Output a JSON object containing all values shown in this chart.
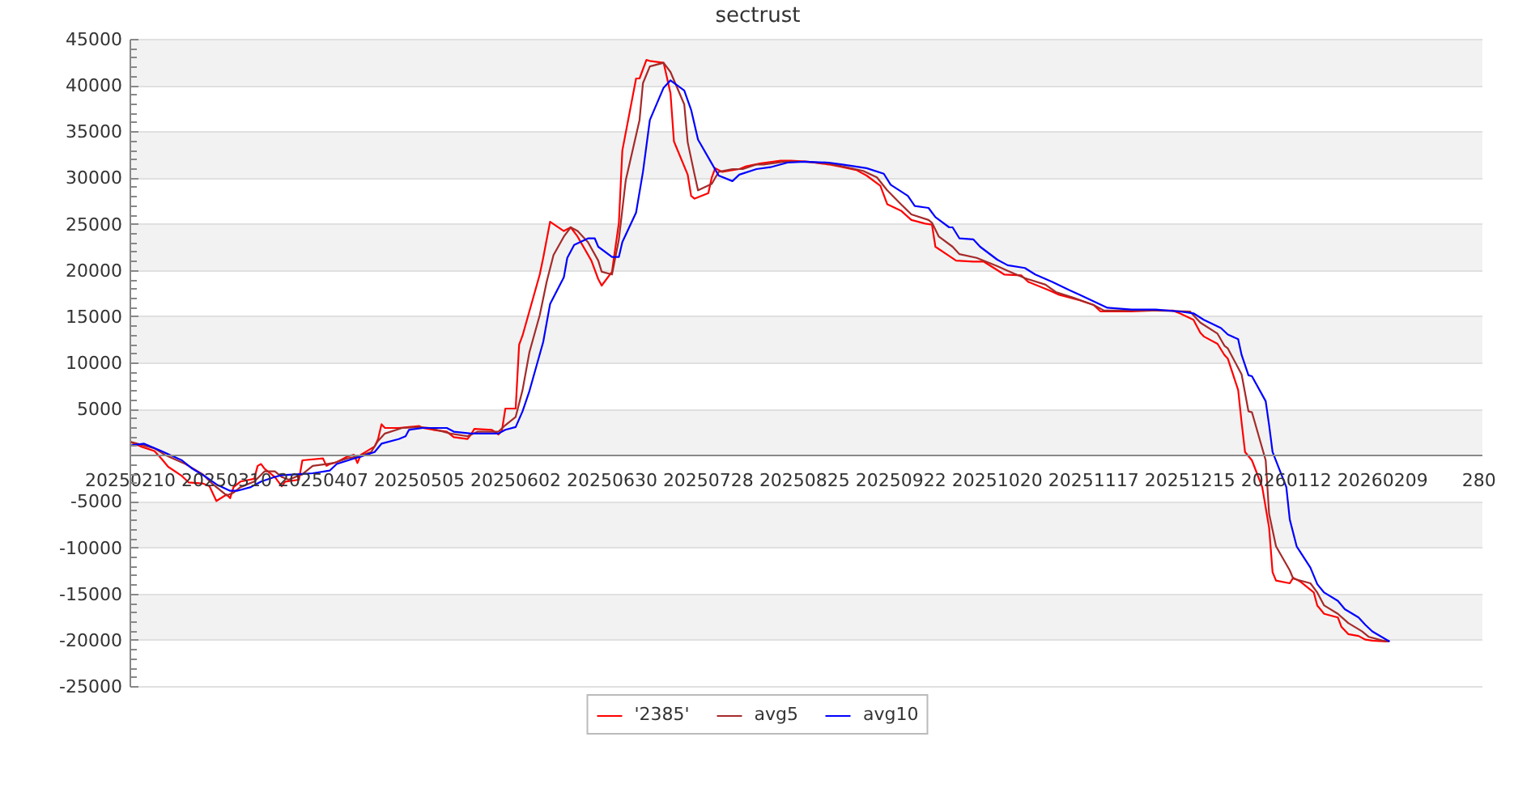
{
  "chart_data": {
    "type": "line",
    "title": "sectrust",
    "xlim": [
      "2025-02-10",
      "2026-03-10"
    ],
    "xticks": [
      {
        "value": "2025-02-10",
        "label": "20250210"
      },
      {
        "value": "2025-03-10",
        "label": "20250310"
      },
      {
        "value": "2025-04-07",
        "label": "20250407"
      },
      {
        "value": "2025-05-05",
        "label": "20250505"
      },
      {
        "value": "2025-06-02",
        "label": "20250602"
      },
      {
        "value": "2025-06-30",
        "label": "20250630"
      },
      {
        "value": "2025-07-28",
        "label": "20250728"
      },
      {
        "value": "2025-08-25",
        "label": "20250825"
      },
      {
        "value": "2025-09-22",
        "label": "20250922"
      },
      {
        "value": "2025-10-20",
        "label": "20251020"
      },
      {
        "value": "2025-11-17",
        "label": "20251117"
      },
      {
        "value": "2025-12-15",
        "label": "20251215"
      },
      {
        "value": "2026-01-12",
        "label": "20260112"
      },
      {
        "value": "2026-02-09",
        "label": "20260209"
      },
      {
        "value": "2026-03-09",
        "label": "280"
      }
    ],
    "ylim": [
      -25000,
      45000
    ],
    "yticks": [
      -25000,
      -20000,
      -15000,
      -10000,
      -5000,
      {
        "value": 0,
        "label": null
      },
      5000,
      10000,
      15000,
      20000,
      25000,
      30000,
      35000,
      40000,
      45000
    ],
    "grid": "y",
    "legend": "bottom",
    "bands": [
      {
        "axis": "y",
        "from": -20000,
        "to": -15000,
        "color": "#f2f2f2"
      },
      {
        "axis": "y",
        "from": -10000,
        "to": -5000,
        "color": "#f2f2f2"
      },
      {
        "axis": "y",
        "from": 0,
        "to": 5000,
        "color": "#f2f2f2"
      },
      {
        "axis": "y",
        "from": 10000,
        "to": 15000,
        "color": "#f2f2f2"
      },
      {
        "axis": "y",
        "from": 20000,
        "to": 25000,
        "color": "#f2f2f2"
      },
      {
        "axis": "y",
        "from": 30000,
        "to": 35000,
        "color": "#f2f2f2"
      },
      {
        "axis": "y",
        "from": 40000,
        "to": 45000,
        "color": "#f2f2f2"
      }
    ],
    "series": [
      {
        "name": "'2385'",
        "color": "#ff0000",
        "x": [
          "2025-02-10",
          "2025-02-13",
          "2025-02-17",
          "2025-02-19",
          "2025-02-21",
          "2025-02-25",
          "2025-02-27",
          "2025-03-03",
          "2025-03-05",
          "2025-03-07",
          "2025-03-10",
          "2025-03-11",
          "2025-03-12",
          "2025-03-14",
          "2025-03-18",
          "2025-03-19",
          "2025-03-20",
          "2025-03-21",
          "2025-03-24",
          "2025-03-25",
          "2025-03-26",
          "2025-03-27",
          "2025-03-31",
          "2025-04-01",
          "2025-04-07",
          "2025-04-08",
          "2025-04-09",
          "2025-04-11",
          "2025-04-14",
          "2025-04-16",
          "2025-04-17",
          "2025-04-18",
          "2025-04-22",
          "2025-04-23",
          "2025-04-24",
          "2025-04-25",
          "2025-04-29",
          "2025-05-05",
          "2025-05-06",
          "2025-05-09",
          "2025-05-13",
          "2025-05-15",
          "2025-05-19",
          "2025-05-20",
          "2025-05-21",
          "2025-05-26",
          "2025-05-28",
          "2025-05-29",
          "2025-05-30",
          "2025-06-02",
          "2025-06-03",
          "2025-06-04",
          "2025-06-09",
          "2025-06-10",
          "2025-06-12",
          "2025-06-16",
          "2025-06-18",
          "2025-06-20",
          "2025-06-24",
          "2025-06-26",
          "2025-06-27",
          "2025-06-30",
          "2025-07-02",
          "2025-07-03",
          "2025-07-07",
          "2025-07-08",
          "2025-07-10",
          "2025-07-11",
          "2025-07-15",
          "2025-07-17",
          "2025-07-18",
          "2025-07-22",
          "2025-07-23",
          "2025-07-24",
          "2025-07-28",
          "2025-07-29",
          "2025-07-30",
          "2025-08-01",
          "2025-08-06",
          "2025-08-08",
          "2025-08-12",
          "2025-08-18",
          "2025-08-21",
          "2025-08-26",
          "2025-09-01",
          "2025-09-04",
          "2025-09-09",
          "2025-09-12",
          "2025-09-16",
          "2025-09-18",
          "2025-09-22",
          "2025-09-25",
          "2025-09-29",
          "2025-10-01",
          "2025-10-02",
          "2025-10-06",
          "2025-10-08",
          "2025-10-13",
          "2025-10-16",
          "2025-10-22",
          "2025-10-27",
          "2025-10-29",
          "2025-11-04",
          "2025-11-07",
          "2025-11-13",
          "2025-11-17",
          "2025-11-19",
          "2025-11-28",
          "2025-12-04",
          "2025-12-10",
          "2025-12-12",
          "2025-12-16",
          "2025-12-18",
          "2025-12-19",
          "2025-12-23",
          "2025-12-25",
          "2025-12-26",
          "2025-12-29",
          "2025-12-30",
          "2025-12-31",
          "2026-01-02",
          "2026-01-05",
          "2026-01-07",
          "2026-01-08",
          "2026-01-09",
          "2026-01-13",
          "2026-01-14",
          "2026-01-16",
          "2026-01-20",
          "2026-01-21",
          "2026-01-23",
          "2026-01-27",
          "2026-01-28",
          "2026-01-30",
          "2026-02-02",
          "2026-02-04",
          "2026-02-06",
          "2026-02-10",
          "2026-02-11"
        ],
        "values": [
          1500,
          1000,
          500,
          -300,
          -1200,
          -2200,
          -2900,
          -3000,
          -3300,
          -4900,
          -4200,
          -4600,
          -3400,
          -2800,
          -2500,
          -1100,
          -900,
          -1400,
          -2300,
          -2800,
          -3300,
          -2800,
          -2600,
          -500,
          -300,
          -1100,
          -900,
          -700,
          -100,
          100,
          -800,
          100,
          1000,
          1800,
          3400,
          3000,
          3000,
          3200,
          3000,
          2800,
          2600,
          2000,
          1800,
          2300,
          2900,
          2800,
          2300,
          2700,
          5100,
          5100,
          12000,
          13000,
          19600,
          21400,
          25300,
          24300,
          24700,
          23700,
          21100,
          19100,
          18400,
          19900,
          25200,
          33000,
          40800,
          40800,
          42800,
          42700,
          42500,
          39200,
          34000,
          30400,
          28100,
          27800,
          28400,
          30100,
          31100,
          30700,
          31000,
          31300,
          31600,
          31900,
          31900,
          31800,
          31500,
          31300,
          30900,
          30300,
          29200,
          27200,
          26500,
          25500,
          25100,
          25000,
          22600,
          21600,
          21100,
          21000,
          21000,
          19600,
          19500,
          18800,
          17900,
          17400,
          16800,
          16300,
          15600,
          15600,
          15700,
          15700,
          15400,
          14700,
          13300,
          12900,
          12100,
          10900,
          10500,
          7100,
          3600,
          400,
          -500,
          -3400,
          -7800,
          -12600,
          -13500,
          -13800,
          -13200,
          -13600,
          -14800,
          -16200,
          -17100,
          -17500,
          -18500,
          -19300,
          -19500,
          -19900,
          -20000,
          -20100,
          -20000
        ]
      },
      {
        "name": "avg5",
        "color": "#a52a2a",
        "x": [
          "2025-02-10",
          "2025-02-17",
          "2025-02-20",
          "2025-02-26",
          "2025-03-03",
          "2025-03-06",
          "2025-03-10",
          "2025-03-12",
          "2025-03-14",
          "2025-03-18",
          "2025-03-21",
          "2025-03-24",
          "2025-03-26",
          "2025-03-28",
          "2025-04-01",
          "2025-04-04",
          "2025-04-08",
          "2025-04-10",
          "2025-04-14",
          "2025-04-17",
          "2025-04-21",
          "2025-04-23",
          "2025-04-25",
          "2025-04-30",
          "2025-05-05",
          "2025-05-08",
          "2025-05-14",
          "2025-05-19",
          "2025-05-22",
          "2025-05-28",
          "2025-05-30",
          "2025-06-02",
          "2025-06-04",
          "2025-06-06",
          "2025-06-09",
          "2025-06-11",
          "2025-06-13",
          "2025-06-16",
          "2025-06-18",
          "2025-06-20",
          "2025-06-23",
          "2025-06-26",
          "2025-06-27",
          "2025-06-30",
          "2025-07-02",
          "2025-07-04",
          "2025-07-08",
          "2025-07-09",
          "2025-07-11",
          "2025-07-15",
          "2025-07-17",
          "2025-07-21",
          "2025-07-22",
          "2025-07-24",
          "2025-07-25",
          "2025-07-29",
          "2025-07-31",
          "2025-08-04",
          "2025-08-07",
          "2025-08-11",
          "2025-08-13",
          "2025-08-19",
          "2025-08-25",
          "2025-09-01",
          "2025-09-05",
          "2025-09-11",
          "2025-09-15",
          "2025-09-18",
          "2025-09-22",
          "2025-09-25",
          "2025-09-30",
          "2025-10-01",
          "2025-10-03",
          "2025-10-07",
          "2025-10-09",
          "2025-10-14",
          "2025-10-20",
          "2025-10-23",
          "2025-10-28",
          "2025-11-03",
          "2025-11-06",
          "2025-11-11",
          "2025-11-17",
          "2025-11-20",
          "2025-11-28",
          "2025-12-05",
          "2025-12-15",
          "2025-12-18",
          "2025-12-23",
          "2025-12-25",
          "2025-12-26",
          "2025-12-30",
          "2026-01-01",
          "2026-01-02",
          "2026-01-06",
          "2026-01-07",
          "2026-01-09",
          "2026-01-13",
          "2026-01-14",
          "2026-01-19",
          "2026-01-21",
          "2026-01-23",
          "2026-01-27",
          "2026-01-30",
          "2026-02-03",
          "2026-02-05",
          "2026-02-09",
          "2026-02-11"
        ],
        "values": [
          1500,
          800,
          100,
          -900,
          -2000,
          -3100,
          -4300,
          -4000,
          -3400,
          -2800,
          -1700,
          -1700,
          -2300,
          -2600,
          -2000,
          -1100,
          -900,
          -800,
          -300,
          -100,
          400,
          1600,
          2400,
          3000,
          3100,
          3000,
          2400,
          2100,
          2600,
          2600,
          3300,
          4200,
          7100,
          11200,
          15200,
          18800,
          21700,
          23700,
          24700,
          24300,
          23100,
          21100,
          19900,
          19600,
          23400,
          29800,
          36300,
          40300,
          42100,
          42500,
          41500,
          38000,
          33900,
          30400,
          28700,
          29400,
          30700,
          31000,
          31000,
          31500,
          31500,
          31800,
          31800,
          31600,
          31300,
          30800,
          30100,
          28700,
          27200,
          26100,
          25500,
          25200,
          23700,
          22600,
          21800,
          21400,
          20500,
          20000,
          19200,
          18500,
          17700,
          17100,
          16300,
          15700,
          15700,
          15700,
          15600,
          14400,
          13200,
          11900,
          11600,
          8800,
          4800,
          4700,
          -500,
          -6300,
          -9800,
          -12400,
          -13300,
          -13800,
          -14800,
          -16200,
          -17100,
          -18100,
          -19000,
          -19600,
          -20000,
          -20100
        ]
      },
      {
        "name": "avg10",
        "color": "#0000ff",
        "x": [
          "2025-02-10",
          "2025-02-14",
          "2025-02-19",
          "2025-02-25",
          "2025-02-28",
          "2025-03-04",
          "2025-03-07",
          "2025-03-11",
          "2025-03-13",
          "2025-03-17",
          "2025-03-20",
          "2025-03-24",
          "2025-03-26",
          "2025-03-31",
          "2025-04-04",
          "2025-04-09",
          "2025-04-11",
          "2025-04-16",
          "2025-04-18",
          "2025-04-22",
          "2025-04-24",
          "2025-04-29",
          "2025-05-01",
          "2025-05-02",
          "2025-05-06",
          "2025-05-13",
          "2025-05-15",
          "2025-05-20",
          "2025-05-28",
          "2025-05-30",
          "2025-06-02",
          "2025-06-04",
          "2025-06-06",
          "2025-06-10",
          "2025-06-12",
          "2025-06-16",
          "2025-06-17",
          "2025-06-19",
          "2025-06-23",
          "2025-06-25",
          "2025-06-26",
          "2025-06-30",
          "2025-07-02",
          "2025-07-03",
          "2025-07-07",
          "2025-07-09",
          "2025-07-11",
          "2025-07-15",
          "2025-07-17",
          "2025-07-21",
          "2025-07-23",
          "2025-07-25",
          "2025-07-29",
          "2025-07-31",
          "2025-08-04",
          "2025-08-06",
          "2025-08-11",
          "2025-08-15",
          "2025-08-20",
          "2025-08-25",
          "2025-09-01",
          "2025-09-05",
          "2025-09-12",
          "2025-09-17",
          "2025-09-19",
          "2025-09-24",
          "2025-09-26",
          "2025-09-30",
          "2025-10-02",
          "2025-10-06",
          "2025-10-07",
          "2025-10-09",
          "2025-10-13",
          "2025-10-15",
          "2025-10-20",
          "2025-10-23",
          "2025-10-28",
          "2025-10-31",
          "2025-11-05",
          "2025-11-10",
          "2025-11-13",
          "2025-11-17",
          "2025-11-21",
          "2025-11-28",
          "2025-12-05",
          "2025-12-12",
          "2025-12-16",
          "2025-12-19",
          "2025-12-24",
          "2025-12-26",
          "2025-12-29",
          "2025-12-30",
          "2026-01-01",
          "2026-01-02",
          "2026-01-06",
          "2026-01-07",
          "2026-01-08",
          "2026-01-12",
          "2026-01-13",
          "2026-01-15",
          "2026-01-19",
          "2026-01-21",
          "2026-01-23",
          "2026-01-27",
          "2026-01-29",
          "2026-02-02",
          "2026-02-04",
          "2026-02-06",
          "2026-02-11"
        ],
        "values": [
          1100,
          1300,
          500,
          -500,
          -1400,
          -2300,
          -3100,
          -3800,
          -3800,
          -3400,
          -2800,
          -2300,
          -2100,
          -2000,
          -1900,
          -1600,
          -900,
          -300,
          -100,
          400,
          1300,
          1800,
          2100,
          2800,
          3000,
          3000,
          2600,
          2400,
          2400,
          2800,
          3100,
          4800,
          7000,
          12300,
          16400,
          19300,
          21400,
          22800,
          23500,
          23500,
          22600,
          21500,
          21500,
          23100,
          26300,
          30700,
          36300,
          39800,
          40600,
          39500,
          37400,
          34200,
          31600,
          30300,
          29700,
          30400,
          31000,
          31200,
          31700,
          31800,
          31700,
          31500,
          31100,
          30500,
          29300,
          28100,
          27000,
          26800,
          25800,
          24700,
          24700,
          23500,
          23400,
          22600,
          21200,
          20600,
          20300,
          19600,
          18800,
          17900,
          17400,
          16700,
          16000,
          15800,
          15800,
          15600,
          15400,
          14700,
          13800,
          13100,
          12600,
          10900,
          8700,
          8600,
          5900,
          3300,
          400,
          -3400,
          -6900,
          -9800,
          -12100,
          -13900,
          -14800,
          -15700,
          -16600,
          -17500,
          -18300,
          -19000,
          -20100
        ]
      }
    ]
  }
}
